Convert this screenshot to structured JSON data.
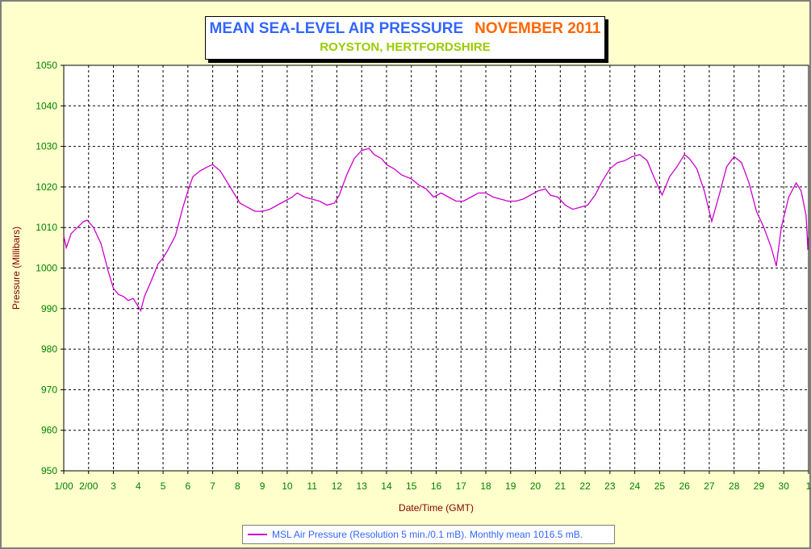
{
  "colors": {
    "background": "#ffffcc",
    "plot_background": "#ffffff",
    "series_line": "#cc00cc",
    "title_primary": "#3366ff",
    "title_date": "#ff6600",
    "subtitle": "#99cc00",
    "axis_label": "#800000",
    "tick_label": "#008000",
    "grid": "#000000"
  },
  "chart_data": {
    "type": "line",
    "title": "MEAN SEA-LEVEL AIR PRESSURE",
    "title_date": "NOVEMBER 2011",
    "subtitle": "ROYSTON, HERTFORDSHIRE",
    "xlabel": "Date/Time (GMT)",
    "ylabel": "Pressure (Millibars)",
    "ylim": [
      950,
      1050
    ],
    "yticks": [
      950,
      960,
      970,
      980,
      990,
      1000,
      1010,
      1020,
      1030,
      1040,
      1050
    ],
    "xlim": [
      1,
      31
    ],
    "xticks": [
      {
        "x": 1,
        "label": "1/00"
      },
      {
        "x": 2,
        "label": "2/00"
      },
      {
        "x": 3,
        "label": "3"
      },
      {
        "x": 4,
        "label": "4"
      },
      {
        "x": 5,
        "label": "5"
      },
      {
        "x": 6,
        "label": "6"
      },
      {
        "x": 7,
        "label": "7"
      },
      {
        "x": 8,
        "label": "8"
      },
      {
        "x": 9,
        "label": "9"
      },
      {
        "x": 10,
        "label": "10"
      },
      {
        "x": 11,
        "label": "11"
      },
      {
        "x": 12,
        "label": "12"
      },
      {
        "x": 13,
        "label": "13"
      },
      {
        "x": 14,
        "label": "14"
      },
      {
        "x": 15,
        "label": "15"
      },
      {
        "x": 16,
        "label": "16"
      },
      {
        "x": 17,
        "label": "17"
      },
      {
        "x": 18,
        "label": "18"
      },
      {
        "x": 19,
        "label": "19"
      },
      {
        "x": 20,
        "label": "20"
      },
      {
        "x": 21,
        "label": "21"
      },
      {
        "x": 22,
        "label": "22"
      },
      {
        "x": 23,
        "label": "23"
      },
      {
        "x": 24,
        "label": "24"
      },
      {
        "x": 25,
        "label": "25"
      },
      {
        "x": 26,
        "label": "26"
      },
      {
        "x": 27,
        "label": "27"
      },
      {
        "x": 28,
        "label": "28"
      },
      {
        "x": 29,
        "label": "29"
      },
      {
        "x": 30,
        "label": "30"
      },
      {
        "x": 31,
        "label": "1"
      }
    ],
    "grid": true,
    "legend_position": "bottom-center",
    "series": [
      {
        "name": "MSL Air Pressure (Resolution 5 min./0.1 mB). Monthly mean 1016.5 mB.",
        "points": [
          [
            1.0,
            1008
          ],
          [
            1.1,
            1005
          ],
          [
            1.3,
            1008.5
          ],
          [
            1.55,
            1010
          ],
          [
            1.8,
            1011.5
          ],
          [
            1.95,
            1011.8
          ],
          [
            2.2,
            1010
          ],
          [
            2.5,
            1006
          ],
          [
            2.8,
            999
          ],
          [
            3.0,
            995
          ],
          [
            3.2,
            993.5
          ],
          [
            3.4,
            993
          ],
          [
            3.6,
            992
          ],
          [
            3.8,
            992.5
          ],
          [
            3.95,
            991
          ],
          [
            4.1,
            989.5
          ],
          [
            4.25,
            993
          ],
          [
            4.5,
            996.5
          ],
          [
            4.8,
            1001
          ],
          [
            5.0,
            1002.5
          ],
          [
            5.2,
            1004.5
          ],
          [
            5.5,
            1008
          ],
          [
            5.8,
            1015
          ],
          [
            6.0,
            1019
          ],
          [
            6.2,
            1022.5
          ],
          [
            6.5,
            1024
          ],
          [
            6.8,
            1025
          ],
          [
            7.0,
            1025.5
          ],
          [
            7.3,
            1024
          ],
          [
            7.6,
            1021
          ],
          [
            7.9,
            1018
          ],
          [
            8.1,
            1016
          ],
          [
            8.4,
            1015
          ],
          [
            8.7,
            1014
          ],
          [
            9.0,
            1014
          ],
          [
            9.3,
            1014.5
          ],
          [
            9.6,
            1015.5
          ],
          [
            9.9,
            1016.5
          ],
          [
            10.2,
            1017.5
          ],
          [
            10.4,
            1018.5
          ],
          [
            10.7,
            1017.5
          ],
          [
            11.0,
            1017
          ],
          [
            11.3,
            1016.5
          ],
          [
            11.6,
            1015.5
          ],
          [
            11.9,
            1016
          ],
          [
            12.1,
            1018
          ],
          [
            12.4,
            1023
          ],
          [
            12.7,
            1027
          ],
          [
            13.0,
            1029
          ],
          [
            13.3,
            1029.5
          ],
          [
            13.5,
            1028
          ],
          [
            13.8,
            1027
          ],
          [
            14.0,
            1025.5
          ],
          [
            14.3,
            1024.5
          ],
          [
            14.6,
            1023
          ],
          [
            15.0,
            1022
          ],
          [
            15.3,
            1020.5
          ],
          [
            15.6,
            1019.5
          ],
          [
            15.9,
            1017.5
          ],
          [
            16.2,
            1018.5
          ],
          [
            16.5,
            1017.5
          ],
          [
            16.8,
            1016.5
          ],
          [
            17.1,
            1016.5
          ],
          [
            17.4,
            1017.5
          ],
          [
            17.7,
            1018.5
          ],
          [
            18.0,
            1018.5
          ],
          [
            18.3,
            1017.5
          ],
          [
            18.6,
            1017
          ],
          [
            18.9,
            1016.5
          ],
          [
            19.2,
            1016.5
          ],
          [
            19.5,
            1017
          ],
          [
            19.8,
            1018
          ],
          [
            20.1,
            1019
          ],
          [
            20.4,
            1019.5
          ],
          [
            20.6,
            1018
          ],
          [
            20.9,
            1017.5
          ],
          [
            21.2,
            1015.5
          ],
          [
            21.5,
            1014.5
          ],
          [
            21.8,
            1015
          ],
          [
            22.1,
            1015.5
          ],
          [
            22.4,
            1018
          ],
          [
            22.7,
            1021.5
          ],
          [
            23.0,
            1024.5
          ],
          [
            23.3,
            1026
          ],
          [
            23.6,
            1026.5
          ],
          [
            23.9,
            1027.5
          ],
          [
            24.2,
            1028
          ],
          [
            24.5,
            1026.5
          ],
          [
            24.8,
            1022
          ],
          [
            25.1,
            1018
          ],
          [
            25.4,
            1022.5
          ],
          [
            25.7,
            1025
          ],
          [
            26.0,
            1028
          ],
          [
            26.2,
            1027
          ],
          [
            26.5,
            1024.5
          ],
          [
            26.8,
            1019
          ],
          [
            27.1,
            1011.5
          ],
          [
            27.4,
            1018
          ],
          [
            27.7,
            1025
          ],
          [
            28.0,
            1027.5
          ],
          [
            28.3,
            1026
          ],
          [
            28.6,
            1021
          ],
          [
            28.9,
            1014
          ],
          [
            29.2,
            1010
          ],
          [
            29.5,
            1005
          ],
          [
            29.7,
            1000.5
          ],
          [
            29.9,
            1010
          ],
          [
            30.2,
            1017.5
          ],
          [
            30.5,
            1021
          ],
          [
            30.7,
            1019
          ],
          [
            30.9,
            1013
          ],
          [
            31.0,
            1005
          ],
          [
            31.15,
            1004.5
          ],
          [
            31.35,
            1007.5
          ]
        ]
      }
    ]
  },
  "legend": {
    "label": "MSL Air Pressure (Resolution 5 min./0.1 mB). Monthly mean 1016.5 mB."
  }
}
